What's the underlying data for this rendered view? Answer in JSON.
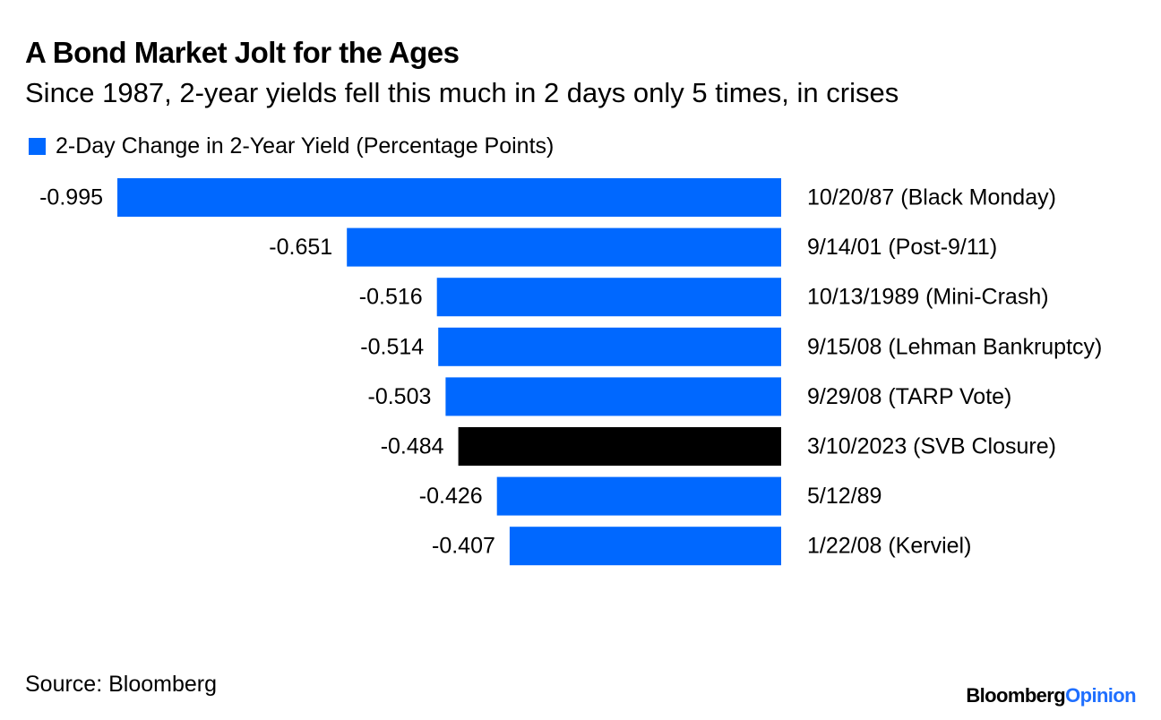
{
  "header": {
    "title": "A Bond Market Jolt for the Ages",
    "subtitle": "Since 1987, 2-year yields fell this much in 2 days only 5 times, in crises"
  },
  "legend": {
    "label": "2-Day Change in 2-Year Yield (Percentage Points)",
    "color": "#0068ff"
  },
  "footer": {
    "source": "Source: Bloomberg",
    "brand_name": "Bloomberg",
    "brand_suffix": "Opinion"
  },
  "colors": {
    "primary_bar": "#0068ff",
    "highlight_bar": "#000000",
    "brand_accent": "#1f6fff"
  },
  "chart_data": {
    "type": "bar",
    "orientation": "horizontal",
    "categories": [
      "10/20/87 (Black Monday)",
      "9/14/01 (Post-9/11)",
      "10/13/1989 (Mini-Crash)",
      "9/15/08 (Lehman Bankruptcy)",
      "9/29/08 (TARP Vote)",
      "3/10/2023 (SVB Closure)",
      "5/12/89",
      "1/22/08 (Kerviel)"
    ],
    "series": [
      {
        "name": "2-Day Change in 2-Year Yield (Percentage Points)",
        "values": [
          -0.995,
          -0.651,
          -0.516,
          -0.514,
          -0.503,
          -0.484,
          -0.426,
          -0.407
        ],
        "value_labels": [
          "-0.995",
          "-0.651",
          "-0.516",
          "-0.514",
          "-0.503",
          "-0.484",
          "-0.426",
          "-0.407"
        ]
      }
    ],
    "highlight_category": "3/10/2023 (SVB Closure)",
    "xlim": [
      -0.995,
      0
    ],
    "grid": false,
    "axes_visible": false,
    "legend_position": "top-left"
  }
}
